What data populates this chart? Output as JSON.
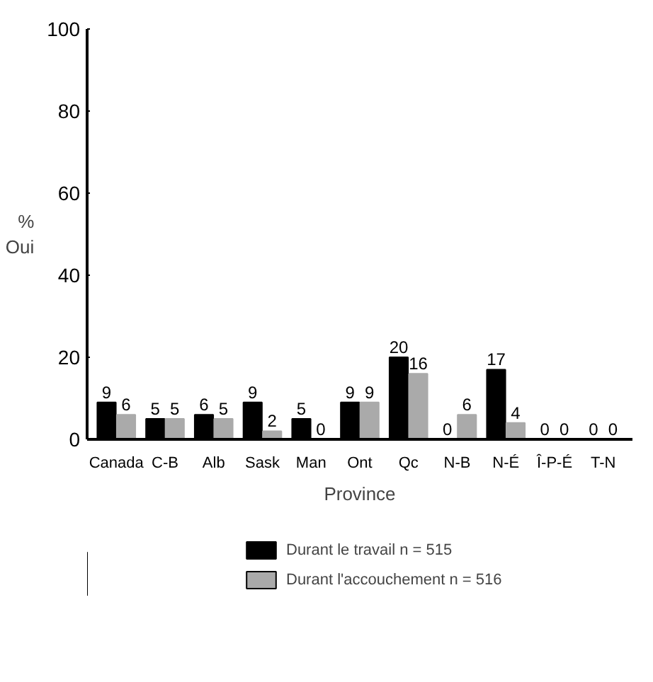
{
  "chart_data": {
    "type": "bar",
    "xlabel": "Province",
    "ylabel": "%\nOui",
    "categories": [
      "Canada",
      "C-B",
      "Alb",
      "Sask",
      "Man",
      "Ont",
      "Qc",
      "N-B",
      "N-É",
      "Î-P-É",
      "T-N"
    ],
    "series": [
      {
        "name": "Durant le travail n = 515",
        "color": "#000000",
        "values": [
          9,
          5,
          6,
          9,
          5,
          9,
          20,
          0,
          17,
          0,
          0
        ]
      },
      {
        "name": "Durant l'accouchement n = 516",
        "color": "#aaaaaa",
        "values": [
          6,
          5,
          5,
          2,
          0,
          9,
          16,
          6,
          4,
          0,
          0
        ]
      }
    ],
    "ylim": [
      0,
      100
    ],
    "yticks": [
      0,
      20,
      40,
      60,
      80,
      100
    ],
    "data_labels": true,
    "legend": "bottom",
    "grid": false
  }
}
